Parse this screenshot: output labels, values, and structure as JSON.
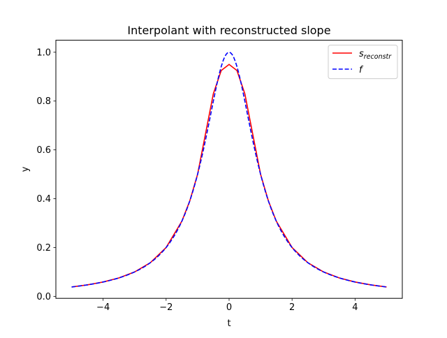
{
  "chart_data": {
    "type": "line",
    "title": "Interpolant with reconstructed slope",
    "xlabel": "t",
    "ylabel": "y",
    "xlim": [
      -5.5,
      5.5
    ],
    "ylim": [
      -0.0081,
      1.0492
    ],
    "x_ticks": [
      -4,
      -2,
      0,
      2,
      4
    ],
    "x_tick_labels": [
      "−4",
      "−2",
      "0",
      "2",
      "4"
    ],
    "y_ticks": [
      0.0,
      0.2,
      0.4,
      0.6,
      0.8,
      1.0
    ],
    "y_tick_labels": [
      "0.0",
      "0.2",
      "0.4",
      "0.6",
      "0.8",
      "1.0"
    ],
    "grid": false,
    "legend_position": "top-right",
    "series": [
      {
        "name_base": "s",
        "name_sub": "reconstr",
        "color": "#ff0000",
        "dash": "solid",
        "x": [
          -5,
          -4.5,
          -4,
          -3.5,
          -3,
          -2.5,
          -2,
          -1.5,
          -1.25,
          -1,
          -0.75,
          -0.5,
          -0.25,
          0,
          0.25,
          0.5,
          0.75,
          1,
          1.25,
          1.5,
          2,
          2.5,
          3,
          3.5,
          4,
          4.5,
          5
        ],
        "values": [
          0.0385,
          0.0471,
          0.0588,
          0.0755,
          0.1,
          0.1379,
          0.2,
          0.3077,
          0.3902,
          0.5,
          0.665,
          0.83,
          0.925,
          0.95,
          0.925,
          0.83,
          0.665,
          0.5,
          0.3902,
          0.3077,
          0.2,
          0.1379,
          0.1,
          0.0755,
          0.0588,
          0.0471,
          0.0385
        ]
      },
      {
        "name_base": "f",
        "name_sub": "",
        "color": "#0000ff",
        "dash": "dashed",
        "function": "1/(1+t^2)",
        "x_range": [
          -5,
          5
        ]
      }
    ]
  }
}
